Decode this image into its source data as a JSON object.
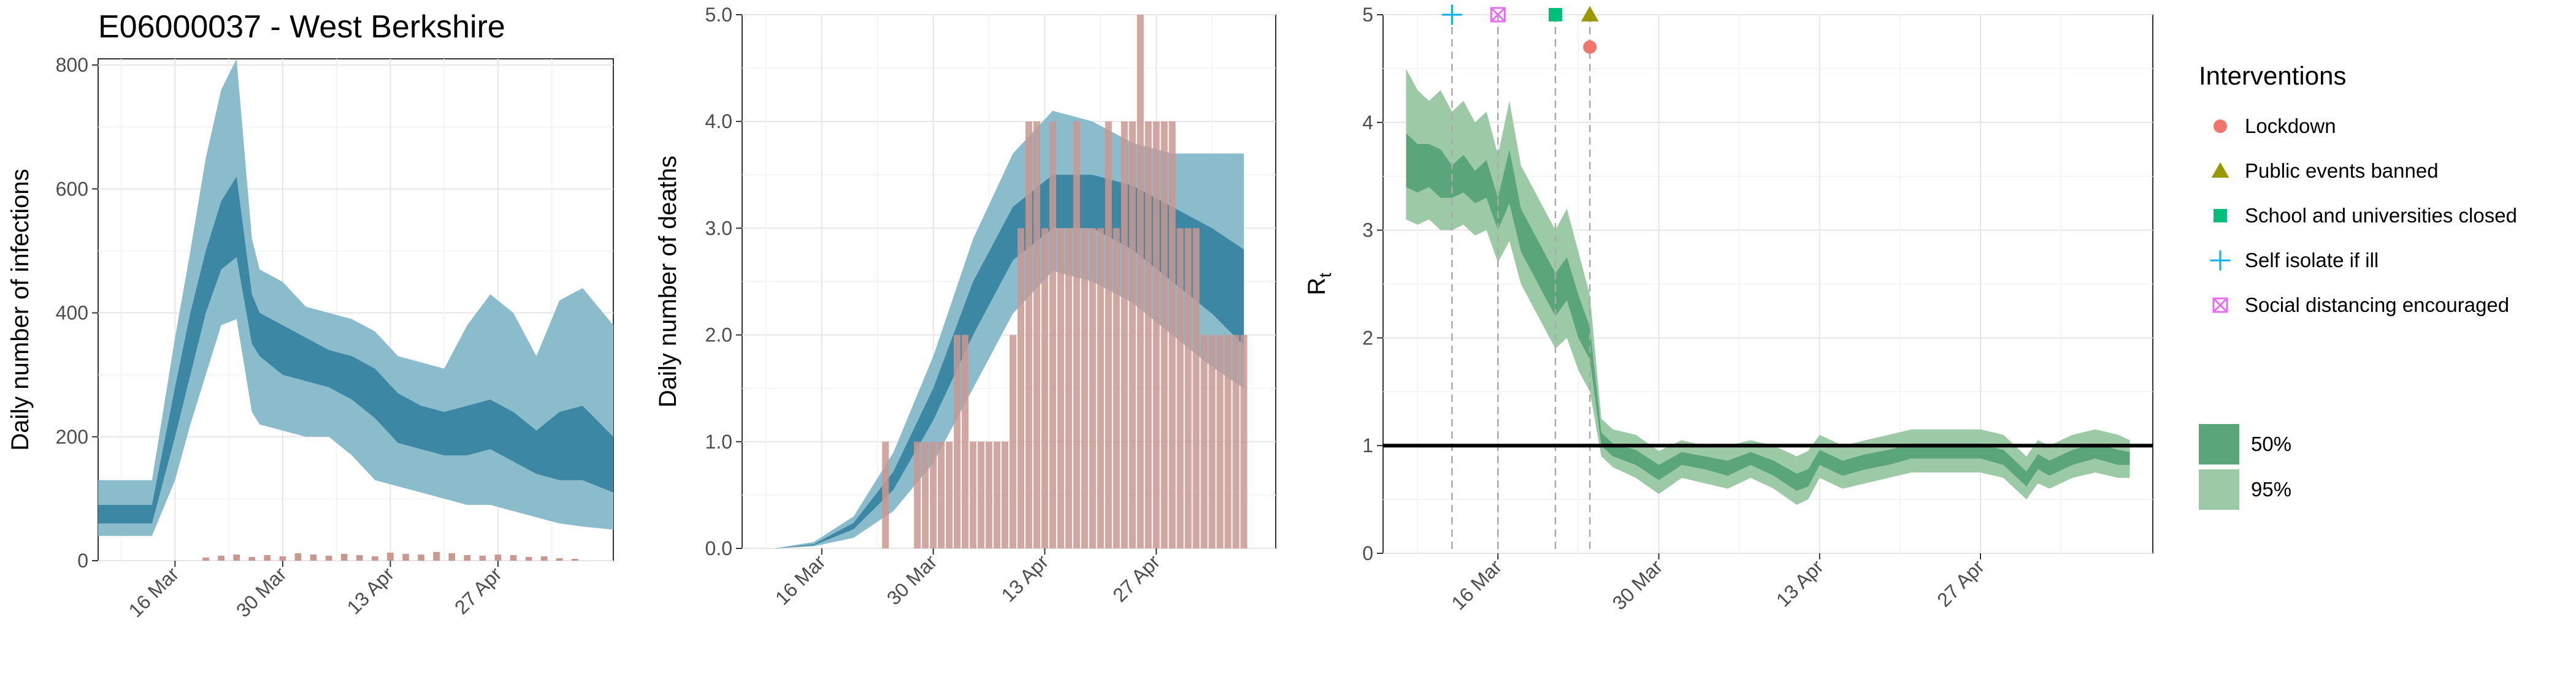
{
  "page": {
    "title": "E06000037 - West Berkshire"
  },
  "colors": {
    "blue_95": "#8bbccc",
    "blue_50": "#2e7f9c",
    "bar": "#c99890",
    "green_95": "#9ccaa7",
    "green_50": "#5ba57a",
    "lockdown": "#f0756c",
    "public_events": "#9a9a00",
    "school": "#00bf7d",
    "self_isolate": "#00b0f6",
    "social_distancing": "#e76bf3"
  },
  "chart_data": [
    {
      "type": "area",
      "ylabel": "Daily number of infections",
      "xlabel": "",
      "x_ticks": [
        "16 Mar",
        "30 Mar",
        "13 Apr",
        "27 Apr"
      ],
      "y_ticks": [
        "0",
        "200",
        "400",
        "600",
        "800"
      ],
      "ylim": [
        0,
        810
      ],
      "grid": true,
      "x_start": "2020-03-06",
      "x_end": "2020-05-12",
      "bands": {
        "dates": [
          "2020-03-06",
          "2020-03-12",
          "2020-03-13",
          "2020-03-16",
          "2020-03-18",
          "2020-03-20",
          "2020-03-22",
          "2020-03-24",
          "2020-03-26",
          "2020-03-27",
          "2020-03-30",
          "2020-04-02",
          "2020-04-05",
          "2020-04-08",
          "2020-04-11",
          "2020-04-14",
          "2020-04-17",
          "2020-04-20",
          "2020-04-23",
          "2020-04-26",
          "2020-04-29",
          "2020-05-02",
          "2020-05-05",
          "2020-05-08",
          "2020-05-12"
        ],
        "lo95": [
          40,
          40,
          40,
          130,
          220,
          300,
          380,
          390,
          240,
          220,
          210,
          200,
          200,
          170,
          130,
          120,
          110,
          100,
          90,
          90,
          80,
          70,
          60,
          55,
          50
        ],
        "hi95": [
          130,
          130,
          130,
          360,
          500,
          650,
          760,
          810,
          520,
          470,
          450,
          410,
          400,
          390,
          370,
          330,
          320,
          310,
          380,
          430,
          400,
          330,
          420,
          440,
          380
        ],
        "lo50": [
          60,
          60,
          60,
          200,
          300,
          400,
          470,
          490,
          350,
          330,
          300,
          290,
          280,
          260,
          230,
          190,
          180,
          170,
          170,
          180,
          160,
          140,
          130,
          130,
          110
        ],
        "hi50": [
          90,
          90,
          90,
          280,
          400,
          500,
          580,
          620,
          430,
          400,
          380,
          360,
          340,
          330,
          310,
          270,
          250,
          240,
          250,
          260,
          240,
          210,
          240,
          250,
          200
        ]
      },
      "bars": {
        "dates": [
          "2020-03-20",
          "2020-03-22",
          "2020-03-24",
          "2020-03-26",
          "2020-03-28",
          "2020-03-30",
          "2020-04-01",
          "2020-04-03",
          "2020-04-05",
          "2020-04-07",
          "2020-04-09",
          "2020-04-11",
          "2020-04-13",
          "2020-04-15",
          "2020-04-17",
          "2020-04-19",
          "2020-04-21",
          "2020-04-23",
          "2020-04-25",
          "2020-04-27",
          "2020-04-29",
          "2020-05-01",
          "2020-05-03",
          "2020-05-05",
          "2020-05-07"
        ],
        "values": [
          5,
          8,
          10,
          6,
          9,
          7,
          12,
          10,
          8,
          11,
          9,
          7,
          13,
          11,
          10,
          14,
          12,
          9,
          8,
          10,
          9,
          6,
          7,
          4,
          3
        ]
      }
    },
    {
      "type": "area",
      "ylabel": "Daily number of deaths",
      "xlabel": "",
      "x_ticks": [
        "16 Mar",
        "30 Mar",
        "13 Apr",
        "27 Apr"
      ],
      "y_ticks": [
        "0.0",
        "1.0",
        "2.0",
        "3.0",
        "4.0",
        "5.0"
      ],
      "ylim": [
        0,
        5
      ],
      "grid": true,
      "x_start": "2020-03-06",
      "x_end": "2020-05-12",
      "bands": {
        "dates": [
          "2020-03-10",
          "2020-03-15",
          "2020-03-20",
          "2020-03-25",
          "2020-03-30",
          "2020-04-04",
          "2020-04-09",
          "2020-04-14",
          "2020-04-19",
          "2020-04-24",
          "2020-04-29",
          "2020-05-04",
          "2020-05-08"
        ],
        "lo95": [
          0.0,
          0.02,
          0.1,
          0.35,
          0.8,
          1.5,
          2.2,
          2.6,
          2.5,
          2.3,
          2.0,
          1.7,
          1.5
        ],
        "hi95": [
          0.0,
          0.06,
          0.3,
          0.9,
          1.8,
          2.9,
          3.7,
          4.1,
          4.0,
          3.8,
          3.7,
          3.7,
          3.7
        ],
        "lo50": [
          0.0,
          0.03,
          0.18,
          0.55,
          1.2,
          2.0,
          2.7,
          3.0,
          3.0,
          2.8,
          2.5,
          2.2,
          1.9
        ],
        "hi50": [
          0.0,
          0.04,
          0.24,
          0.72,
          1.5,
          2.5,
          3.2,
          3.5,
          3.5,
          3.4,
          3.2,
          3.0,
          2.8
        ]
      },
      "bars": {
        "dates": [
          "2020-03-24",
          "2020-03-28",
          "2020-03-29",
          "2020-03-30",
          "2020-03-31",
          "2020-04-01",
          "2020-04-02",
          "2020-04-03",
          "2020-04-04",
          "2020-04-05",
          "2020-04-06",
          "2020-04-07",
          "2020-04-08",
          "2020-04-09",
          "2020-04-10",
          "2020-04-11",
          "2020-04-12",
          "2020-04-13",
          "2020-04-14",
          "2020-04-15",
          "2020-04-16",
          "2020-04-17",
          "2020-04-18",
          "2020-04-19",
          "2020-04-20",
          "2020-04-21",
          "2020-04-22",
          "2020-04-23",
          "2020-04-24",
          "2020-04-25",
          "2020-04-26",
          "2020-04-27",
          "2020-04-28",
          "2020-04-29",
          "2020-04-30",
          "2020-05-01",
          "2020-05-02",
          "2020-05-03",
          "2020-05-04",
          "2020-05-05",
          "2020-05-06",
          "2020-05-07",
          "2020-05-08"
        ],
        "values": [
          1,
          1,
          1,
          1,
          1,
          1,
          2,
          2,
          1,
          1,
          1,
          1,
          1,
          2,
          3,
          4,
          4,
          3,
          4,
          3,
          3,
          4,
          3,
          3,
          3,
          4,
          3,
          4,
          4,
          5,
          4,
          4,
          4,
          4,
          3,
          3,
          3,
          2,
          2,
          2,
          2,
          2,
          2
        ]
      }
    },
    {
      "type": "area",
      "ylabel": "R",
      "ylabel_sub": "t",
      "xlabel": "",
      "x_ticks": [
        "16 Mar",
        "30 Mar",
        "13 Apr",
        "27 Apr"
      ],
      "y_ticks": [
        "0",
        "1",
        "2",
        "3",
        "4",
        "5"
      ],
      "ylim": [
        0,
        5
      ],
      "grid": true,
      "x_start": "2020-03-06",
      "x_end": "2020-05-12",
      "reference_line": 1,
      "intervention_dates": [
        "2020-03-12",
        "2020-03-16",
        "2020-03-21",
        "2020-03-24"
      ],
      "bands": {
        "dates": [
          "2020-03-08",
          "2020-03-09",
          "2020-03-10",
          "2020-03-11",
          "2020-03-12",
          "2020-03-13",
          "2020-03-14",
          "2020-03-15",
          "2020-03-16",
          "2020-03-17",
          "2020-03-18",
          "2020-03-19",
          "2020-03-20",
          "2020-03-21",
          "2020-03-22",
          "2020-03-23",
          "2020-03-24",
          "2020-03-25",
          "2020-03-26",
          "2020-03-28",
          "2020-03-30",
          "2020-04-01",
          "2020-04-03",
          "2020-04-05",
          "2020-04-07",
          "2020-04-09",
          "2020-04-11",
          "2020-04-12",
          "2020-04-13",
          "2020-04-15",
          "2020-04-17",
          "2020-04-19",
          "2020-04-21",
          "2020-04-23",
          "2020-04-25",
          "2020-04-27",
          "2020-04-29",
          "2020-05-01",
          "2020-05-02",
          "2020-05-03",
          "2020-05-05",
          "2020-05-07",
          "2020-05-09",
          "2020-05-10"
        ],
        "lo95": [
          3.1,
          3.05,
          3.1,
          3.0,
          3.0,
          3.05,
          2.95,
          3.0,
          2.7,
          2.9,
          2.5,
          2.3,
          2.1,
          1.9,
          2.0,
          1.7,
          1.5,
          0.9,
          0.8,
          0.7,
          0.55,
          0.7,
          0.65,
          0.6,
          0.7,
          0.6,
          0.45,
          0.5,
          0.7,
          0.6,
          0.65,
          0.7,
          0.75,
          0.75,
          0.75,
          0.75,
          0.7,
          0.5,
          0.65,
          0.6,
          0.7,
          0.75,
          0.7,
          0.7
        ],
        "hi95": [
          4.5,
          4.3,
          4.2,
          4.3,
          4.1,
          4.2,
          4.0,
          4.1,
          3.7,
          4.2,
          3.6,
          3.4,
          3.2,
          3.0,
          3.2,
          2.8,
          2.4,
          1.25,
          1.15,
          1.1,
          0.95,
          1.05,
          1.0,
          1.0,
          1.05,
          1.0,
          0.9,
          0.95,
          1.1,
          1.0,
          1.05,
          1.1,
          1.15,
          1.15,
          1.15,
          1.15,
          1.1,
          0.9,
          1.05,
          1.0,
          1.1,
          1.15,
          1.1,
          1.05
        ],
        "lo50": [
          3.4,
          3.35,
          3.4,
          3.3,
          3.3,
          3.35,
          3.25,
          3.3,
          3.0,
          3.25,
          2.8,
          2.6,
          2.4,
          2.2,
          2.35,
          2.0,
          1.8,
          1.0,
          0.9,
          0.82,
          0.68,
          0.82,
          0.78,
          0.72,
          0.82,
          0.72,
          0.58,
          0.62,
          0.82,
          0.72,
          0.78,
          0.82,
          0.88,
          0.88,
          0.88,
          0.88,
          0.82,
          0.62,
          0.78,
          0.72,
          0.82,
          0.88,
          0.82,
          0.82
        ],
        "hi50": [
          3.9,
          3.8,
          3.8,
          3.75,
          3.6,
          3.7,
          3.55,
          3.65,
          3.3,
          3.75,
          3.2,
          3.0,
          2.8,
          2.6,
          2.75,
          2.4,
          2.1,
          1.12,
          1.02,
          0.96,
          0.82,
          0.94,
          0.9,
          0.86,
          0.94,
          0.86,
          0.74,
          0.78,
          0.96,
          0.86,
          0.92,
          0.96,
          1.02,
          1.02,
          1.02,
          1.02,
          0.96,
          0.76,
          0.92,
          0.86,
          0.96,
          1.02,
          0.96,
          0.94
        ]
      },
      "markers": [
        {
          "name": "Self isolate if ill",
          "date": "2020-03-12",
          "y": 5.0,
          "shape": "plus"
        },
        {
          "name": "Social distancing encouraged",
          "date": "2020-03-16",
          "y": 5.0,
          "shape": "square-x"
        },
        {
          "name": "School and universities closed",
          "date": "2020-03-21",
          "y": 5.0,
          "shape": "square"
        },
        {
          "name": "Public events banned",
          "date": "2020-03-24",
          "y": 5.0,
          "shape": "triangle"
        },
        {
          "name": "Lockdown",
          "date": "2020-03-24",
          "y": 4.7,
          "shape": "circle"
        }
      ]
    }
  ],
  "legend": {
    "interventions_title": "Interventions",
    "items": [
      {
        "label": "Lockdown",
        "shape": "circle",
        "color_key": "lockdown"
      },
      {
        "label": "Public events banned",
        "shape": "triangle",
        "color_key": "public_events"
      },
      {
        "label": "School and universities closed",
        "shape": "square",
        "color_key": "school"
      },
      {
        "label": "Self isolate if ill",
        "shape": "plus",
        "color_key": "self_isolate"
      },
      {
        "label": "Social distancing encouraged",
        "shape": "square-x",
        "color_key": "social_distancing"
      }
    ],
    "ci_items": [
      {
        "label": "50%",
        "color_key": "green_50"
      },
      {
        "label": "95%",
        "color_key": "green_95"
      }
    ]
  }
}
